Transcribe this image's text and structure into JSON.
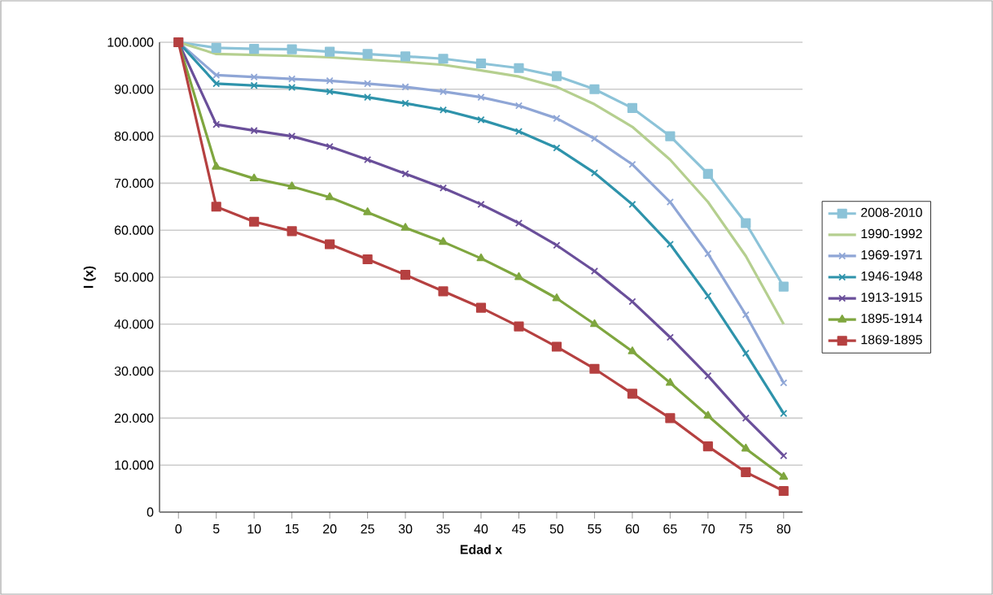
{
  "chart_data": {
    "type": "line",
    "xlabel": "Edad x",
    "ylabel": "l (x)",
    "x": [
      0,
      5,
      10,
      15,
      20,
      25,
      30,
      35,
      40,
      45,
      50,
      55,
      60,
      65,
      70,
      75,
      80
    ],
    "xlim": [
      -2.5,
      82.5
    ],
    "xticks": [
      0,
      5,
      10,
      15,
      20,
      25,
      30,
      35,
      40,
      45,
      50,
      55,
      60,
      65,
      70,
      75,
      80
    ],
    "ylim": [
      0,
      100000
    ],
    "yticks": [
      {
        "value": 0,
        "label": "0"
      },
      {
        "value": 10000,
        "label": "10.000"
      },
      {
        "value": 20000,
        "label": "20.000"
      },
      {
        "value": 30000,
        "label": "30.000"
      },
      {
        "value": 40000,
        "label": "40.000"
      },
      {
        "value": 50000,
        "label": "50.000"
      },
      {
        "value": 60000,
        "label": "60.000"
      },
      {
        "value": 70000,
        "label": "70.000"
      },
      {
        "value": 80000,
        "label": "80.000"
      },
      {
        "value": 90000,
        "label": "90.000"
      },
      {
        "value": 100000,
        "label": "100.000"
      }
    ],
    "grid": "y",
    "legend": "right",
    "series": [
      {
        "name": "2008-2010",
        "color": "#8cc3d8",
        "marker": "square",
        "values": [
          100000,
          98800,
          98600,
          98500,
          98000,
          97500,
          97000,
          96500,
          95500,
          94500,
          92800,
          90000,
          86000,
          80000,
          72000,
          61500,
          48000
        ]
      },
      {
        "name": "1990-1992",
        "color": "#b5cf8f",
        "marker": "none",
        "values": [
          100000,
          97500,
          97300,
          97100,
          96800,
          96300,
          95800,
          95200,
          94000,
          92700,
          90500,
          86800,
          82000,
          75000,
          66000,
          54500,
          40000
        ]
      },
      {
        "name": "1969-1971",
        "color": "#8fa6d6",
        "marker": "cross",
        "values": [
          100000,
          93000,
          92600,
          92200,
          91800,
          91200,
          90500,
          89500,
          88300,
          86500,
          83800,
          79500,
          74000,
          66000,
          55000,
          42000,
          27500
        ]
      },
      {
        "name": "1946-1948",
        "color": "#2e93ab",
        "marker": "cross",
        "values": [
          100000,
          91200,
          90800,
          90400,
          89500,
          88300,
          87000,
          85600,
          83500,
          81000,
          77500,
          72200,
          65500,
          57000,
          46000,
          33800,
          21000
        ]
      },
      {
        "name": "1913-1915",
        "color": "#6a4f9a",
        "marker": "cross",
        "values": [
          100000,
          82500,
          81200,
          80000,
          77800,
          75000,
          72000,
          69000,
          65500,
          61500,
          56800,
          51300,
          44800,
          37200,
          29000,
          20000,
          12000
        ]
      },
      {
        "name": "1895-1914",
        "color": "#7fa63f",
        "marker": "triangle",
        "values": [
          100000,
          73500,
          71000,
          69300,
          67000,
          63800,
          60500,
          57500,
          54000,
          50000,
          45500,
          40000,
          34200,
          27500,
          20500,
          13500,
          7500
        ]
      },
      {
        "name": "1869-1895",
        "color": "#b54040",
        "marker": "square",
        "values": [
          100000,
          65000,
          61800,
          59800,
          57000,
          53800,
          50500,
          47000,
          43500,
          39500,
          35200,
          30500,
          25200,
          20000,
          14000,
          8500,
          4500
        ]
      }
    ]
  }
}
